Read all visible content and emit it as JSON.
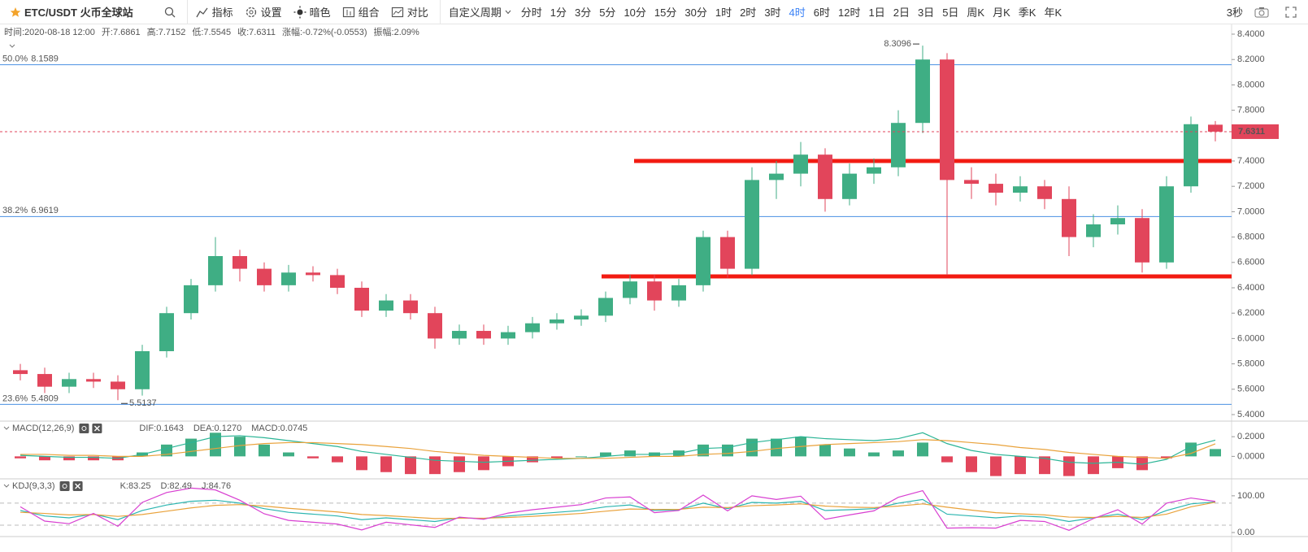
{
  "toolbar": {
    "symbol": "ETC/USDT 火币全球站",
    "tools": [
      "指标",
      "设置",
      "暗色",
      "组合",
      "对比"
    ],
    "custom_period": "自定义周期",
    "periods": [
      {
        "label": "分时"
      },
      {
        "label": "1分"
      },
      {
        "label": "3分"
      },
      {
        "label": "5分"
      },
      {
        "label": "10分"
      },
      {
        "label": "15分"
      },
      {
        "label": "30分"
      },
      {
        "label": "1时"
      },
      {
        "label": "2时"
      },
      {
        "label": "3时"
      },
      {
        "label": "4时",
        "selected": true
      },
      {
        "label": "6时"
      },
      {
        "label": "12时"
      },
      {
        "label": "1日"
      },
      {
        "label": "2日"
      },
      {
        "label": "3日"
      },
      {
        "label": "5日"
      },
      {
        "label": "周K"
      },
      {
        "label": "月K"
      },
      {
        "label": "季K"
      },
      {
        "label": "年K"
      }
    ],
    "refresh": "3秒"
  },
  "info": {
    "time": "时间:2020-08-18 12:00",
    "fields": [
      {
        "label": "开:",
        "value": 7.6861
      },
      {
        "label": "高:",
        "value": 7.7152
      },
      {
        "label": "低:",
        "value": 7.5545
      },
      {
        "label": "收:",
        "value": 7.6311
      },
      {
        "label": "涨幅:",
        "text": "-0.72%(-0.0553)"
      },
      {
        "label": "振幅:",
        "text": "2.09%"
      }
    ]
  },
  "chart_data": [
    {
      "type": "candlestick",
      "up_color": "#3fae84",
      "down_color": "#e2455b",
      "open": [
        5.75,
        5.72,
        5.62,
        5.68,
        5.66,
        5.6,
        5.9,
        6.2,
        6.42,
        6.65,
        6.55,
        6.42,
        6.52,
        6.5,
        6.4,
        6.22,
        6.3,
        6.2,
        6.0,
        6.06,
        6.0,
        6.05,
        6.12,
        6.15,
        6.18,
        6.32,
        6.45,
        6.3,
        6.42,
        6.8,
        6.55,
        7.25,
        7.3,
        7.45,
        7.1,
        7.3,
        7.35,
        7.7,
        8.2,
        7.25,
        7.22,
        7.15,
        7.2,
        7.1,
        6.8,
        6.9,
        6.95,
        6.6,
        7.2,
        7.6861
      ],
      "high": [
        5.8,
        5.77,
        5.73,
        5.73,
        5.71,
        5.95,
        6.25,
        6.47,
        6.8,
        6.7,
        6.6,
        6.58,
        6.57,
        6.55,
        6.45,
        6.35,
        6.35,
        6.25,
        6.11,
        6.11,
        6.1,
        6.17,
        6.2,
        6.23,
        6.37,
        6.5,
        6.5,
        6.47,
        6.85,
        6.85,
        7.35,
        7.4,
        7.55,
        7.5,
        7.38,
        7.42,
        7.8,
        8.3096,
        8.25,
        7.35,
        7.3,
        7.28,
        7.25,
        7.2,
        6.98,
        7.05,
        7.02,
        7.28,
        7.75,
        7.7152
      ],
      "low": [
        5.67,
        5.57,
        5.57,
        5.61,
        5.5137,
        5.55,
        5.85,
        6.15,
        6.37,
        6.45,
        6.37,
        6.37,
        6.45,
        6.35,
        6.17,
        6.17,
        6.15,
        5.92,
        5.95,
        5.95,
        5.95,
        6.0,
        6.07,
        6.1,
        6.13,
        6.27,
        6.22,
        6.25,
        6.37,
        6.48,
        6.5,
        7.1,
        7.2,
        7.0,
        7.05,
        7.22,
        7.28,
        7.62,
        6.5,
        7.1,
        7.05,
        7.08,
        7.02,
        6.65,
        6.72,
        6.82,
        6.52,
        6.55,
        7.15,
        7.5545
      ],
      "close": [
        5.72,
        5.62,
        5.68,
        5.66,
        5.6,
        5.9,
        6.2,
        6.42,
        6.65,
        6.55,
        6.42,
        6.52,
        6.5,
        6.4,
        6.22,
        6.3,
        6.2,
        6.0,
        6.06,
        6.0,
        6.05,
        6.12,
        6.15,
        6.18,
        6.32,
        6.45,
        6.3,
        6.42,
        6.8,
        6.55,
        7.25,
        7.3,
        7.45,
        7.1,
        7.3,
        7.35,
        7.7,
        8.2,
        7.25,
        7.22,
        7.15,
        7.2,
        7.1,
        6.8,
        6.9,
        6.95,
        6.6,
        7.2,
        7.69,
        7.6311
      ],
      "ylim": [
        5.355,
        8.477
      ],
      "yticks": [
        {
          "value": 5.4,
          "label": "5.4000"
        },
        {
          "value": 5.6,
          "label": "5.6000"
        },
        {
          "value": 5.8,
          "label": "5.8000"
        },
        {
          "value": 6.0,
          "label": "6.0000"
        },
        {
          "value": 6.2,
          "label": "6.2000"
        },
        {
          "value": 6.4,
          "label": "6.4000"
        },
        {
          "value": 6.6,
          "label": "6.6000"
        },
        {
          "value": 6.8,
          "label": "6.8000"
        },
        {
          "value": 7.0,
          "label": "7.0000"
        },
        {
          "value": 7.2,
          "label": "7.2000"
        },
        {
          "value": 7.4,
          "label": "7.4000"
        },
        {
          "value": 7.6,
          "label": "7.6000"
        },
        {
          "value": 7.8,
          "label": "7.8000"
        },
        {
          "value": 8.0,
          "label": "8.0000"
        },
        {
          "value": 8.2,
          "label": "8.2000"
        },
        {
          "value": 8.4,
          "label": "8.4000"
        }
      ],
      "fib_levels": [
        {
          "label": "50.0%",
          "value": 8.1589
        },
        {
          "label": "38.2%",
          "value": 6.9619
        },
        {
          "label": "23.6%",
          "value": 5.4809
        }
      ],
      "fib_color": "#4a90e2",
      "drawn_lines": [
        {
          "value": 7.4,
          "color": "#f21b12"
        },
        {
          "value": 6.49,
          "color": "#f21b12"
        }
      ]
    },
    {
      "type": "macd",
      "title": "MACD(12,26,9)",
      "ylim": [
        -0.22,
        0.35
      ],
      "yticks": [
        {
          "value": 0,
          "label": "0.0000"
        },
        {
          "value": 0.2,
          "label": "0.2000"
        }
      ],
      "series": [
        {
          "name": "DIF:",
          "kind": "line",
          "color": "#2bb596",
          "values": [
            0.01,
            0.0,
            -0.01,
            -0.01,
            -0.02,
            0.02,
            0.08,
            0.14,
            0.2,
            0.21,
            0.19,
            0.16,
            0.13,
            0.1,
            0.05,
            0.02,
            -0.01,
            -0.04,
            -0.05,
            -0.06,
            -0.05,
            -0.04,
            -0.03,
            -0.02,
            0.0,
            0.02,
            0.02,
            0.03,
            0.08,
            0.09,
            0.14,
            0.17,
            0.2,
            0.18,
            0.17,
            0.16,
            0.18,
            0.24,
            0.13,
            0.06,
            0.02,
            0.0,
            -0.02,
            -0.06,
            -0.07,
            -0.06,
            -0.08,
            -0.03,
            0.1,
            0.1643
          ]
        },
        {
          "name": "DEA:",
          "kind": "line",
          "color": "#e9a23b",
          "legend_value": {
            "value": 0.127,
            "label": "0.1270"
          },
          "values": [
            0.02,
            0.02,
            0.01,
            0.01,
            0.0,
            0.0,
            0.02,
            0.05,
            0.08,
            0.11,
            0.13,
            0.14,
            0.14,
            0.13,
            0.12,
            0.1,
            0.08,
            0.05,
            0.03,
            0.01,
            0.0,
            -0.01,
            -0.02,
            -0.02,
            -0.02,
            -0.01,
            0.0,
            0.0,
            0.02,
            0.03,
            0.05,
            0.08,
            0.1,
            0.12,
            0.13,
            0.14,
            0.15,
            0.17,
            0.16,
            0.14,
            0.12,
            0.09,
            0.07,
            0.04,
            0.02,
            0.0,
            -0.01,
            -0.02,
            0.03,
            0.127
          ]
        },
        {
          "name": "MACD:",
          "kind": "bar",
          "color": "#3fae84",
          "negative_color": "#e2455b",
          "values": [
            -0.02,
            -0.04,
            -0.04,
            -0.04,
            -0.04,
            0.04,
            0.12,
            0.18,
            0.24,
            0.2,
            0.12,
            0.04,
            -0.02,
            -0.06,
            -0.14,
            -0.16,
            -0.18,
            -0.18,
            -0.16,
            -0.14,
            -0.1,
            -0.06,
            -0.02,
            0.0,
            0.04,
            0.06,
            0.04,
            0.06,
            0.12,
            0.12,
            0.18,
            0.18,
            0.2,
            0.12,
            0.08,
            0.04,
            0.06,
            0.14,
            -0.06,
            -0.16,
            -0.2,
            -0.18,
            -0.18,
            -0.2,
            -0.18,
            -0.12,
            -0.14,
            -0.02,
            0.14,
            0.0745
          ]
        }
      ]
    },
    {
      "type": "kdj",
      "title": "KDJ(9,3,3)",
      "ylim": [
        -11,
        144
      ],
      "yticks": [
        {
          "value": 0,
          "label": "0.00"
        },
        {
          "value": 100,
          "label": "100.00"
        }
      ],
      "dashed_levels": [
        20,
        80
      ],
      "series": [
        {
          "name": "K:",
          "kind": "line",
          "color": "#2bb5b0",
          "values": [
            60,
            45,
            40,
            50,
            35,
            60,
            75,
            85,
            88,
            80,
            65,
            55,
            50,
            45,
            35,
            40,
            35,
            30,
            40,
            38,
            45,
            50,
            55,
            60,
            70,
            75,
            60,
            62,
            80,
            65,
            82,
            80,
            85,
            60,
            62,
            65,
            80,
            90,
            50,
            45,
            40,
            45,
            42,
            30,
            40,
            50,
            35,
            60,
            78,
            83.25
          ]
        },
        {
          "name": "D:",
          "kind": "line",
          "color": "#e9a23b",
          "values": [
            55,
            52,
            48,
            49,
            44,
            49,
            58,
            67,
            74,
            76,
            72,
            66,
            61,
            56,
            49,
            46,
            42,
            38,
            39,
            39,
            41,
            44,
            48,
            52,
            58,
            64,
            63,
            63,
            69,
            68,
            73,
            75,
            78,
            72,
            69,
            68,
            72,
            78,
            69,
            61,
            54,
            51,
            48,
            42,
            41,
            44,
            41,
            50,
            70,
            82.49
          ]
        },
        {
          "name": "J:",
          "kind": "line",
          "color": "#d83fd1",
          "values": [
            70,
            31,
            24,
            52,
            17,
            82,
            109,
            121,
            116,
            88,
            51,
            33,
            28,
            23,
            7,
            28,
            21,
            14,
            42,
            36,
            53,
            62,
            69,
            76,
            94,
            97,
            54,
            60,
            102,
            59,
            100,
            90,
            99,
            36,
            48,
            59,
            96,
            114,
            12,
            13,
            12,
            33,
            30,
            6,
            38,
            62,
            23,
            80,
            94,
            84.76
          ]
        }
      ]
    }
  ]
}
